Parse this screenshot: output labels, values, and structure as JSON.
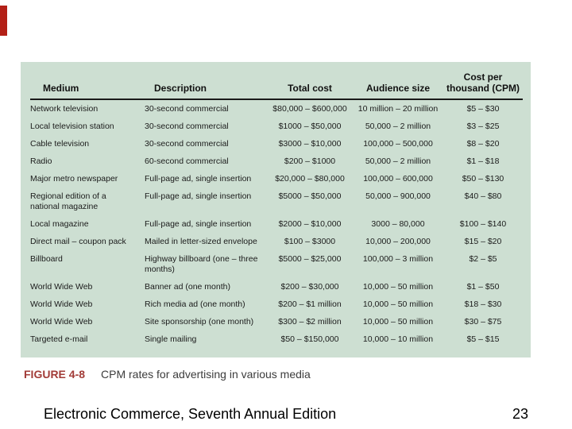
{
  "figure": {
    "label": "FIGURE 4-8",
    "caption": "CPM rates for advertising in various media"
  },
  "footer": {
    "title": "Electronic Commerce, Seventh Annual Edition",
    "page": "23"
  },
  "colors": {
    "panel_bg": "#cddfd2",
    "figure_label": "#a23c38",
    "accent_bar": "#b32017",
    "table_text": "#1b1b1b"
  },
  "table": {
    "columns": [
      "Medium",
      "Description",
      "Total cost",
      "Audience size",
      "Cost per thousand (CPM)"
    ],
    "rows": [
      [
        "Network television",
        "30-second commercial",
        "$80,000 – $600,000",
        "10 million – 20 million",
        "$5 – $30"
      ],
      [
        "Local television station",
        "30-second commercial",
        "$1000 – $50,000",
        "50,000 – 2 million",
        "$3 – $25"
      ],
      [
        "Cable television",
        "30-second commercial",
        "$3000 – $10,000",
        "100,000 – 500,000",
        "$8 – $20"
      ],
      [
        "Radio",
        "60-second commercial",
        "$200 – $1000",
        "50,000 – 2 million",
        "$1 – $18"
      ],
      [
        "Major metro newspaper",
        "Full-page ad, single insertion",
        "$20,000 – $80,000",
        "100,000 – 600,000",
        "$50 – $130"
      ],
      [
        "Regional edition of a national magazine",
        "Full-page ad, single insertion",
        "$5000 – $50,000",
        "50,000 – 900,000",
        "$40 – $80"
      ],
      [
        "Local magazine",
        "Full-page ad, single insertion",
        "$2000 – $10,000",
        "3000 – 80,000",
        "$100 – $140"
      ],
      [
        "Direct mail – coupon pack",
        "Mailed in letter-sized envelope",
        "$100 – $3000",
        "10,000 – 200,000",
        "$15 – $20"
      ],
      [
        "Billboard",
        "Highway billboard (one – three months)",
        "$5000 – $25,000",
        "100,000 – 3 million",
        "$2 – $5"
      ],
      [
        "World Wide Web",
        "Banner ad (one month)",
        "$200 – $30,000",
        "10,000 – 50 million",
        "$1 – $50"
      ],
      [
        "World Wide Web",
        "Rich media ad (one month)",
        "$200 – $1 million",
        "10,000 – 50 million",
        "$18 – $30"
      ],
      [
        "World Wide Web",
        "Site sponsorship (one month)",
        "$300 – $2 million",
        "10,000 – 50 million",
        "$30 – $75"
      ],
      [
        "Targeted e-mail",
        "Single mailing",
        "$50 – $150,000",
        "10,000 – 10 million",
        "$5 – $15"
      ]
    ]
  }
}
